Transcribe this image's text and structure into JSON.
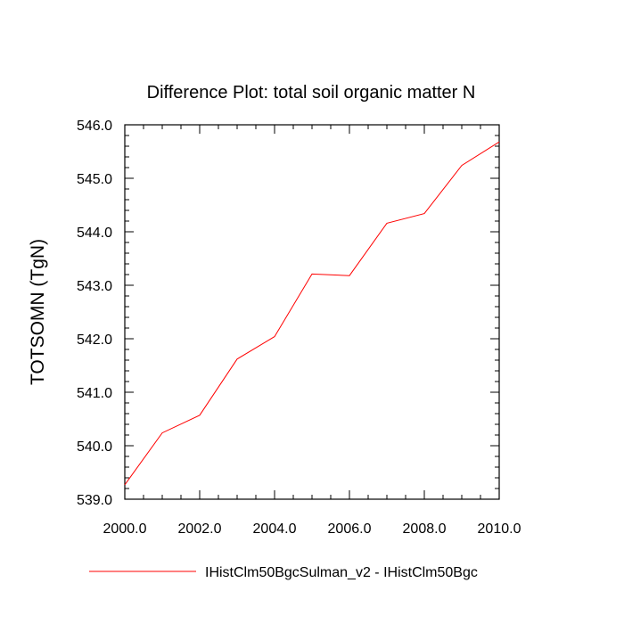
{
  "chart_data": {
    "type": "line",
    "title": "Difference Plot: total soil organic matter N",
    "xlabel": "",
    "ylabel": "TOTSOMN  (TgN)",
    "xlim": [
      2000,
      2010
    ],
    "ylim": [
      539,
      546
    ],
    "x_ticks": [
      "2000.0",
      "2002.0",
      "2004.0",
      "2006.0",
      "2008.0",
      "2010.0"
    ],
    "y_ticks": [
      "539.0",
      "540.0",
      "541.0",
      "542.0",
      "543.0",
      "544.0",
      "545.0",
      "546.0"
    ],
    "grid": false,
    "legend_position": "bottom",
    "series": [
      {
        "name": "IHistClm50BgcSulman_v2 - IHistClm50Bgc",
        "color": "#ff0000",
        "x": [
          2000,
          2001,
          2002,
          2003,
          2004,
          2005,
          2006,
          2007,
          2008,
          2009,
          2010
        ],
        "y": [
          539.27,
          540.24,
          540.57,
          541.62,
          542.04,
          543.21,
          543.18,
          544.16,
          544.34,
          545.24,
          545.68
        ]
      }
    ]
  }
}
